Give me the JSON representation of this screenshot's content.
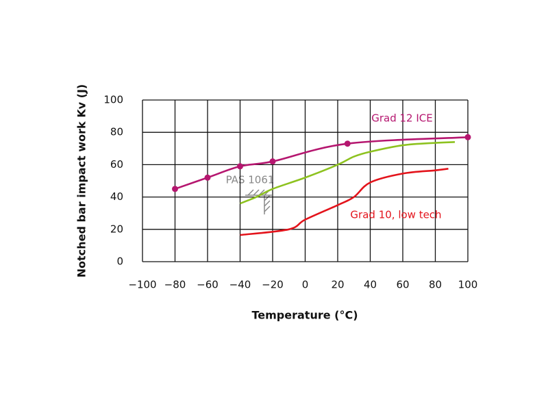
{
  "chart_data": {
    "type": "line",
    "x_label": "Temperature (°C)",
    "y_label": "Notched bar impact work Kv (J)",
    "xlim": [
      -100,
      100
    ],
    "ylim": [
      0,
      100
    ],
    "xticks": [
      {
        "value": -100,
        "label": "−100"
      },
      {
        "value": -80,
        "label": "−80"
      },
      {
        "value": -60,
        "label": "−60"
      },
      {
        "value": -40,
        "label": "−40"
      },
      {
        "value": -20,
        "label": "−20"
      },
      0,
      20,
      40,
      60,
      80,
      100
    ],
    "yticks": [
      0,
      20,
      40,
      60,
      80,
      100
    ],
    "grid": true,
    "annotation": "PAS 1061",
    "series": [
      {
        "name": "Grad 12 ICE",
        "color": "#b5166f",
        "markers": true,
        "x": [
          -80,
          -60,
          -40,
          -20,
          26,
          100
        ],
        "values": [
          45,
          52,
          59,
          62,
          73,
          77
        ]
      },
      {
        "color": "#8dc21f",
        "markers": false,
        "x": [
          -40,
          -30,
          -20,
          0,
          20,
          30,
          40,
          60,
          80,
          92
        ],
        "values": [
          36,
          40,
          45,
          52,
          60,
          65,
          68,
          72,
          73.5,
          74
        ]
      },
      {
        "name": "Grad 10, low tech",
        "color": "#e3131b",
        "markers": false,
        "x": [
          -40,
          -10,
          0,
          20,
          30,
          40,
          60,
          80,
          88
        ],
        "values": [
          16.5,
          20,
          26,
          35,
          40,
          49,
          54.5,
          56.5,
          57.5
        ]
      }
    ]
  }
}
